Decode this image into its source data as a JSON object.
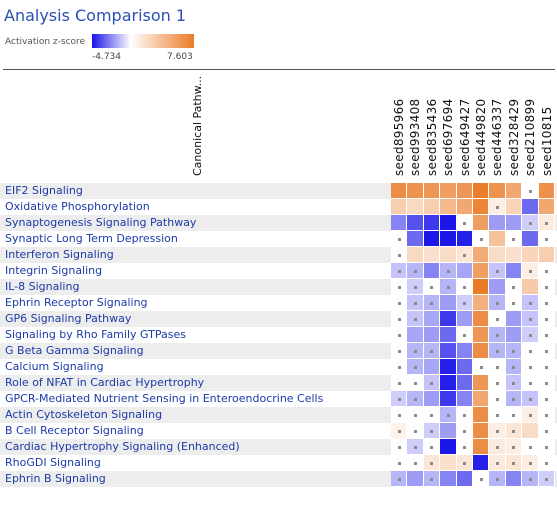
{
  "header": {
    "title": "Analysis Comparison 1"
  },
  "legend": {
    "label": "Activation z-score",
    "min": "-4.734",
    "max": "7.603",
    "neg_color": "#1a14e8",
    "pos_color": "#ea7a26"
  },
  "chart_data": {
    "type": "heatmap",
    "row_header": "Canonical Pathw...",
    "columns": [
      "seed895966",
      "seed993408",
      "seed835436",
      "seed697694",
      "seed649427",
      "seed449820",
      "seed446337",
      "seed328429",
      "seed210899",
      "seed10815"
    ],
    "rows": [
      "EIF2 Signaling",
      "Oxidative Phosphorylation",
      "Synaptogenesis Signaling Pathway",
      "Synaptic Long Term Depression",
      "Interferon Signaling",
      "Integrin Signaling",
      "IL-8 Signaling",
      "Ephrin Receptor Signaling",
      "GP6 Signaling Pathway",
      "Signaling by Rho Family GTPases",
      "G Beta Gamma Signaling",
      "Calcium Signaling",
      "Role of NFAT in Cardiac Hypertrophy",
      "GPCR-Mediated Nutrient Sensing in Enteroendocrine Cells",
      "Actin Cytoskeleton Signaling",
      "B Cell Receptor Signaling",
      "Cardiac Hypertrophy Signaling (Enhanced)",
      "RhoGDI Signaling",
      "Ephrin B Signaling"
    ],
    "values": [
      [
        6.5,
        6.2,
        6.0,
        5.5,
        6.0,
        7.4,
        6.2,
        5.0,
        0,
        6.3
      ],
      [
        2.8,
        2.2,
        2.8,
        4.0,
        5.0,
        7.0,
        1.0,
        2.5,
        -3.0,
        5.0
      ],
      [
        -2.5,
        -3.5,
        -4.0,
        -4.7,
        0,
        5.5,
        -2.0,
        -2.0,
        -1.0,
        1.2
      ],
      [
        0,
        -3.0,
        -4.7,
        -4.7,
        -4.5,
        0,
        3.5,
        0,
        -3.0,
        0
      ],
      [
        0,
        2.2,
        1.8,
        2.0,
        1.5,
        4.8,
        2.0,
        1.8,
        2.4,
        2.8
      ],
      [
        -1.2,
        -1.5,
        -2.5,
        -1.5,
        -1.8,
        5.5,
        -1.2,
        -2.5,
        1.0,
        0
      ],
      [
        0,
        -1.0,
        0,
        -1.5,
        0,
        7.6,
        -2.0,
        0,
        3.0,
        0
      ],
      [
        0,
        -1.2,
        -1.5,
        -2.0,
        -1.0,
        4.5,
        -1.5,
        0,
        -1.2,
        0
      ],
      [
        0,
        -1.2,
        -1.8,
        -4.0,
        -2.0,
        6.5,
        0,
        -2.0,
        -1.2,
        0
      ],
      [
        0,
        -1.8,
        -2.0,
        -3.0,
        0,
        6.0,
        -1.5,
        -2.0,
        -1.0,
        0
      ],
      [
        0,
        -1.5,
        -1.5,
        -3.5,
        -2.5,
        6.5,
        -1.5,
        -1.5,
        0,
        0
      ],
      [
        0,
        -1.5,
        -1.8,
        -4.5,
        -3.0,
        0,
        0,
        -1.5,
        0,
        0
      ],
      [
        0,
        0,
        -1.2,
        -4.5,
        -3.0,
        6.0,
        0,
        -1.2,
        0,
        0
      ],
      [
        -1.0,
        -1.5,
        -2.0,
        -4.0,
        -2.5,
        5.0,
        0,
        -1.5,
        -1.2,
        0
      ],
      [
        0,
        0,
        0,
        -1.5,
        0,
        6.5,
        0,
        0,
        1.0,
        0
      ],
      [
        0.8,
        0,
        -1.0,
        -2.0,
        0,
        6.5,
        1.0,
        1.5,
        2.0,
        0
      ],
      [
        0,
        -1.0,
        0,
        -4.7,
        0,
        6.5,
        1.2,
        1.0,
        0,
        0
      ],
      [
        0,
        0,
        1.5,
        1.8,
        1.5,
        -4.5,
        1.2,
        1.5,
        1.0,
        0
      ],
      [
        -1.5,
        -2.0,
        -1.5,
        -2.5,
        -3.0,
        0,
        -1.5,
        -2.5,
        -1.5,
        -1.0
      ]
    ],
    "zmin": -4.734,
    "zmax": 7.603
  }
}
